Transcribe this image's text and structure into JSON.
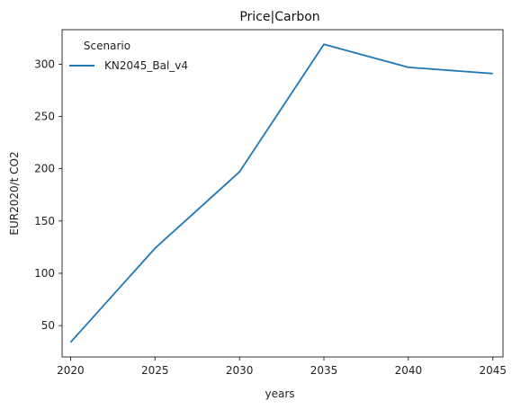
{
  "chart_data": {
    "type": "line",
    "title": "Price|Carbon",
    "xlabel": "years",
    "ylabel": "EUR2020/t CO2",
    "x": [
      2020,
      2025,
      2030,
      2035,
      2040,
      2045
    ],
    "xticks": [
      "2020",
      "2025",
      "2030",
      "2035",
      "2040",
      "2045"
    ],
    "yticks": [
      50,
      100,
      150,
      200,
      250,
      300
    ],
    "xlim": [
      2019.5,
      2045.6
    ],
    "ylim": [
      20,
      333
    ],
    "legend_title": "Scenario",
    "legend_position": "top-left",
    "grid": false,
    "series": [
      {
        "name": "KN2045_Bal_v4",
        "color": "#1f77b4",
        "values": [
          34,
          124,
          197,
          319,
          297,
          291
        ]
      }
    ]
  }
}
